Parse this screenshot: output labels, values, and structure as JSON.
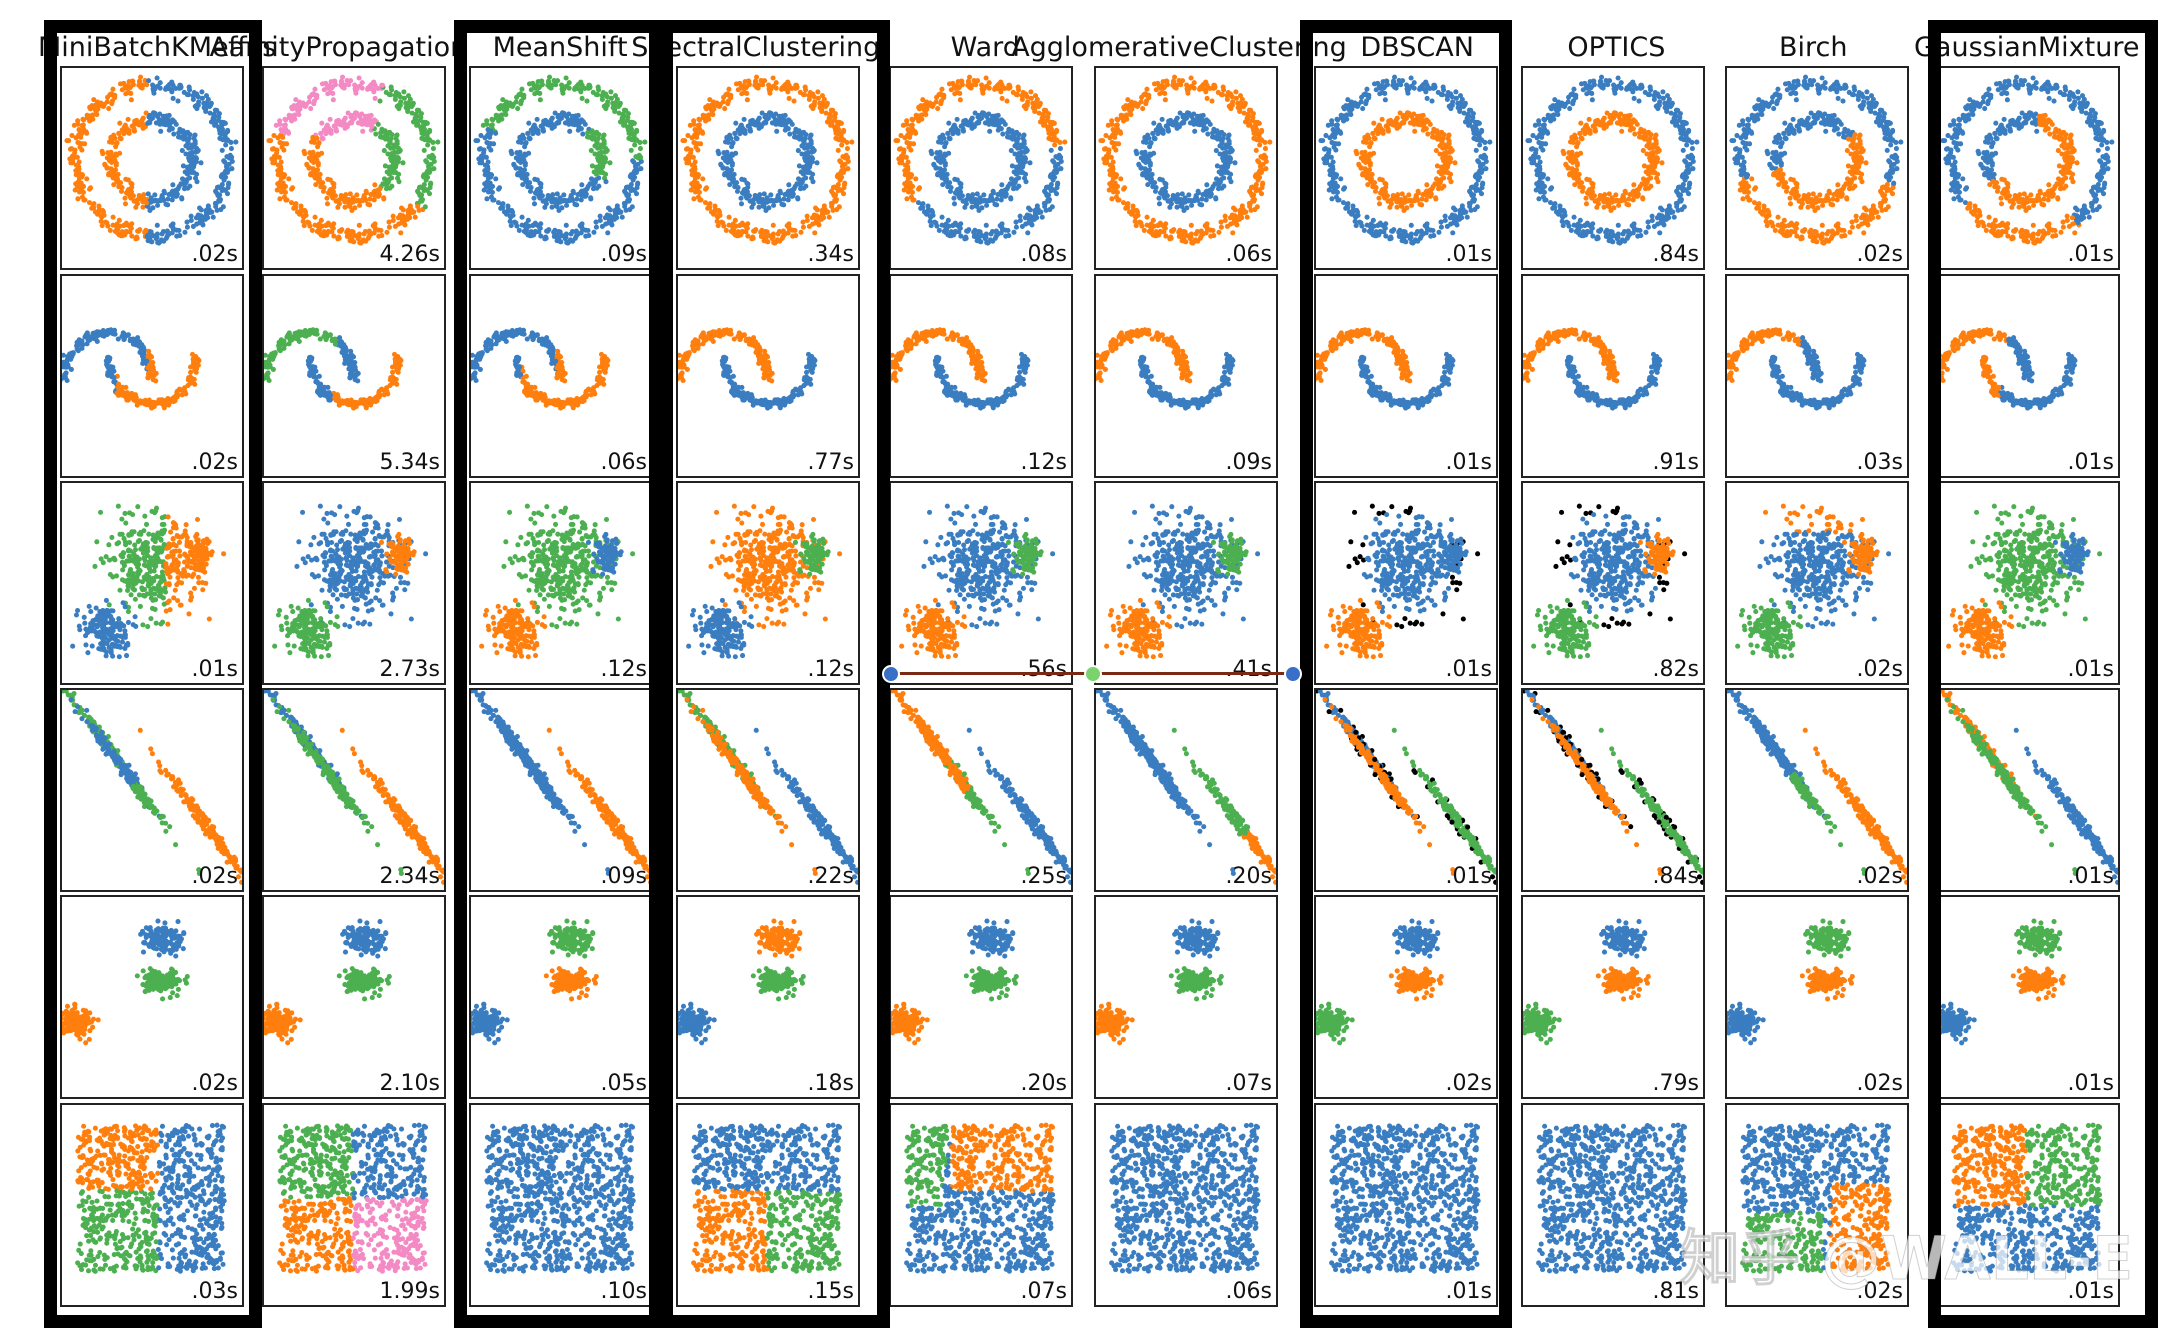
{
  "colors": {
    "blue": "#3a7dc0",
    "orange": "#ff7f0e",
    "green": "#4caf50",
    "pink": "#f48ac4",
    "black": "#000000",
    "slider_line": "#7a2a14",
    "slider_handle_end": "#3a6fc8",
    "slider_handle_mid": "#7bd36b"
  },
  "columns": [
    {
      "title": "MiniBatchKMeans",
      "highlighted": true,
      "times": [
        ".02s",
        ".02s",
        ".01s",
        ".02s",
        ".02s",
        ".03s"
      ]
    },
    {
      "title": "AffinityPropagation",
      "highlighted": false,
      "times": [
        "4.26s",
        "5.34s",
        "2.73s",
        "2.34s",
        "2.10s",
        "1.99s"
      ]
    },
    {
      "title": "MeanShift",
      "highlighted": true,
      "times": [
        ".09s",
        ".06s",
        ".12s",
        ".09s",
        ".05s",
        ".10s"
      ]
    },
    {
      "title": "SpectralClustering",
      "highlighted": true,
      "times": [
        ".34s",
        ".77s",
        ".12s",
        ".22s",
        ".18s",
        ".15s"
      ]
    },
    {
      "title": "Ward",
      "highlighted": false,
      "times": [
        ".08s",
        ".12s",
        ".56s",
        ".25s",
        ".20s",
        ".07s"
      ]
    },
    {
      "title": "AgglomerativeClustering",
      "highlighted": false,
      "times": [
        ".06s",
        ".09s",
        ".41s",
        ".20s",
        ".07s",
        ".06s"
      ]
    },
    {
      "title": "DBSCAN",
      "highlighted": true,
      "times": [
        ".01s",
        ".01s",
        ".01s",
        ".01s",
        ".02s",
        ".01s"
      ]
    },
    {
      "title": "OPTICS",
      "highlighted": false,
      "times": [
        ".84s",
        ".91s",
        ".82s",
        ".84s",
        ".79s",
        ".81s"
      ]
    },
    {
      "title": "Birch",
      "highlighted": false,
      "times": [
        ".02s",
        ".03s",
        ".02s",
        ".02s",
        ".02s",
        ".02s"
      ]
    },
    {
      "title": "GaussianMixture",
      "highlighted": true,
      "times": [
        ".01s",
        ".01s",
        ".01s",
        ".01s",
        ".01s",
        ".01s"
      ]
    }
  ],
  "watermark": "知乎 @WALL-E"
}
